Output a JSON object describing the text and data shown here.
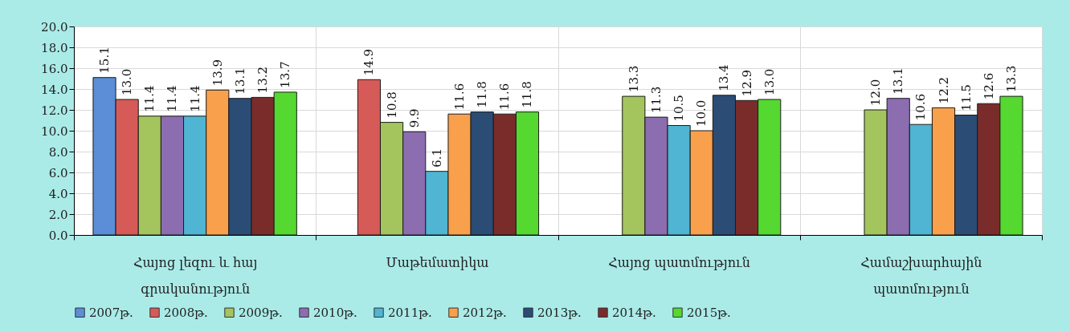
{
  "chart_data": {
    "type": "bar",
    "categories": [
      "Հայոց լեզու և հայ գրականություն",
      "Մաթեմատիկա",
      "Հայոց պատմություն",
      "Համաշխարհային պատմություն"
    ],
    "series": [
      {
        "name": "2007թ.",
        "color": "#5b8ed6",
        "values": [
          15.1,
          null,
          null,
          null
        ],
        "value_labels": [
          "15.1",
          null,
          null,
          null
        ]
      },
      {
        "name": "2008թ.",
        "color": "#d65a57",
        "values": [
          13.0,
          14.9,
          null,
          null
        ],
        "value_labels": [
          "13.0",
          "14.9",
          null,
          null
        ]
      },
      {
        "name": "2009թ.",
        "color": "#a4c45e",
        "values": [
          11.4,
          10.8,
          13.3,
          12.0
        ],
        "value_labels": [
          "11.4",
          "10.8",
          "13.3",
          "12.0"
        ]
      },
      {
        "name": "2010թ.",
        "color": "#8c6db0",
        "values": [
          11.4,
          9.9,
          11.3,
          13.1
        ],
        "value_labels": [
          "11.4",
          "9.9",
          "11.3",
          "13.1"
        ]
      },
      {
        "name": "2011թ.",
        "color": "#4fb5d2",
        "values": [
          11.4,
          6.1,
          10.5,
          10.6
        ],
        "value_labels": [
          "11.4",
          "6.1",
          "10.5",
          "10.6"
        ]
      },
      {
        "name": "2012թ.",
        "color": "#f9a04c",
        "values": [
          13.9,
          11.6,
          10.0,
          12.2
        ],
        "value_labels": [
          "13.9",
          "11.6",
          "10.0",
          "12.2"
        ]
      },
      {
        "name": "2013թ.",
        "color": "#2b4c75",
        "values": [
          13.1,
          11.8,
          13.4,
          11.5
        ],
        "value_labels": [
          "13.1",
          "11.8",
          "13.4",
          "11.5"
        ]
      },
      {
        "name": "2014թ.",
        "color": "#7a2c2b",
        "values": [
          13.2,
          11.6,
          12.9,
          12.6
        ],
        "value_labels": [
          "13.2",
          "11.6",
          "12.9",
          "12.6"
        ]
      },
      {
        "name": "2015թ.",
        "color": "#55d830",
        "values": [
          13.7,
          11.8,
          13.0,
          13.3
        ],
        "value_labels": [
          "13.7",
          "11.8",
          "13.0",
          "13.3"
        ]
      }
    ],
    "ylim": [
      0,
      20
    ],
    "yticks": [
      {
        "value": 0,
        "label": "0.0"
      },
      {
        "value": 2,
        "label": "2.0"
      },
      {
        "value": 4,
        "label": "4.0"
      },
      {
        "value": 6,
        "label": "6.0"
      },
      {
        "value": 8,
        "label": "8.0"
      },
      {
        "value": 10,
        "label": "10.0"
      },
      {
        "value": 12,
        "label": "12.0"
      },
      {
        "value": 14,
        "label": "14.0"
      },
      {
        "value": 16,
        "label": "16.0"
      },
      {
        "value": 18,
        "label": "18.0"
      },
      {
        "value": 20,
        "label": "20.0"
      }
    ],
    "grid": true,
    "legend": "bottom"
  }
}
